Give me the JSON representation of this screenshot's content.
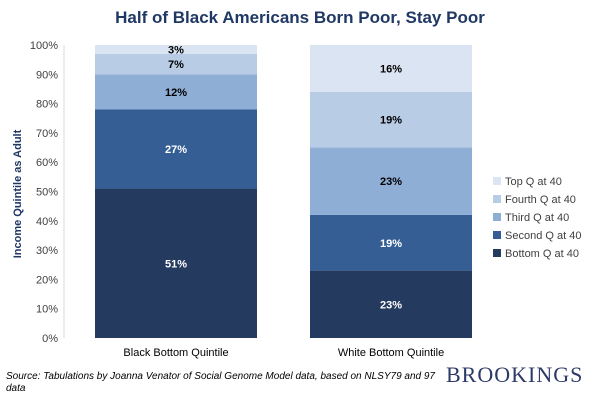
{
  "chart_data": {
    "type": "bar",
    "stacked": true,
    "title": "Half of Black Americans Born Poor, Stay Poor",
    "ylabel": "Income Quintile as Adult",
    "xlabel": "",
    "ylim": [
      0,
      100
    ],
    "yticks": [
      "0%",
      "10%",
      "20%",
      "30%",
      "40%",
      "50%",
      "60%",
      "70%",
      "80%",
      "90%",
      "100%"
    ],
    "categories": [
      "Black Bottom Quintile",
      "White Bottom Quintile"
    ],
    "series": [
      {
        "name": "Bottom Q at 40",
        "values": [
          51,
          23
        ],
        "labels": [
          "51%",
          "23%"
        ],
        "color": "#243a5e",
        "label_color": "#ffffff"
      },
      {
        "name": "Second Q at 40",
        "values": [
          27,
          19
        ],
        "labels": [
          "27%",
          "19%"
        ],
        "color": "#355f94",
        "label_color": "#ffffff"
      },
      {
        "name": "Third Q at 40",
        "values": [
          12,
          23
        ],
        "labels": [
          "12%",
          "23%"
        ],
        "color": "#8eaed5",
        "label_color": "#000000"
      },
      {
        "name": "Fourth Q at 40",
        "values": [
          7,
          19
        ],
        "labels": [
          "7%",
          "19%"
        ],
        "color": "#b8cce6",
        "label_color": "#000000"
      },
      {
        "name": "Top Q at 40",
        "values": [
          3,
          16
        ],
        "labels": [
          "3%",
          "16%"
        ],
        "color": "#dae4f2",
        "label_color": "#000000"
      }
    ],
    "legend_position": "right",
    "grid": false
  },
  "source": "Source: Tabulations by Joanna Venator of Social Genome Model data, based on NLSY79 and 97 data",
  "logo_text": "BROOKINGS"
}
